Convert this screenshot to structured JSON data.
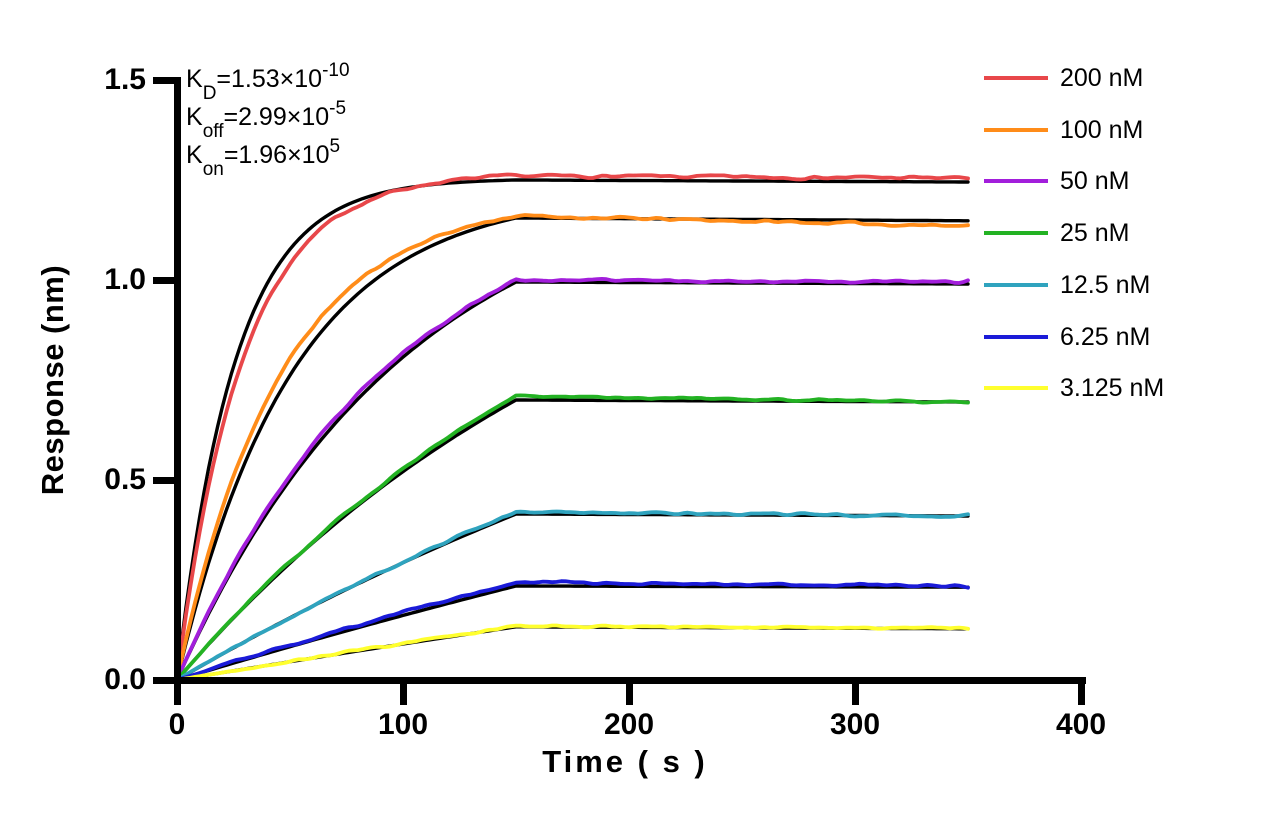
{
  "figure": {
    "background": "#FFFFFF"
  },
  "annotations": {
    "kd": {
      "base": "K",
      "sub": "D",
      "value": "=1.53×10",
      "exp": "-10"
    },
    "koff": {
      "base": "K",
      "sub": "off",
      "value": "=2.99×10",
      "exp": "-5"
    },
    "kon": {
      "base": "K",
      "sub": "on",
      "value": "=1.96×10",
      "exp": "5"
    }
  },
  "chart_data": {
    "type": "line",
    "title": "",
    "xlabel": "Time ( s )",
    "ylabel": "Response (nm)",
    "xlim": [
      0,
      400
    ],
    "ylim": [
      0,
      1.5
    ],
    "x_ticks": [
      "0",
      "100",
      "200",
      "300",
      "400"
    ],
    "y_ticks": [
      "0.0",
      "0.5",
      "1.0",
      "1.5"
    ],
    "grid": false,
    "legend_position": "top-right-outside",
    "axis_color": "#000000",
    "fit_color": "#000000",
    "association_end_s": 150,
    "trace_end_s": 350,
    "sample_times": [
      0,
      10,
      25,
      50,
      75,
      100,
      125,
      150,
      200,
      250,
      300,
      350
    ],
    "series": [
      {
        "name": "200 nM",
        "color": "#E8474A",
        "kobs": 0.0392,
        "k_data_scale": 0.88,
        "peak": 1.26,
        "end": 1.255,
        "fit_peak": 1.25,
        "fit_end": 1.245,
        "noise": 0.007,
        "seed": 7,
        "values": [
          0,
          0.37,
          0.73,
          1.04,
          1.17,
          1.23,
          1.25,
          1.26,
          1.26,
          1.26,
          1.26,
          1.255
        ]
      },
      {
        "name": "100 nM",
        "color": "#FF8C19",
        "kobs": 0.0196,
        "k_data_scale": 1.12,
        "peak": 1.16,
        "end": 1.135,
        "fit_peak": 1.155,
        "fit_end": 1.148,
        "noise": 0.007,
        "seed": 11,
        "values": [
          0,
          0.24,
          0.51,
          0.8,
          0.97,
          1.07,
          1.13,
          1.16,
          1.15,
          1.145,
          1.14,
          1.135
        ]
      },
      {
        "name": "50 nM",
        "color": "#A21EDB",
        "kobs": 0.0098,
        "k_data_scale": 1.05,
        "peak": 1.0,
        "end": 0.995,
        "fit_peak": 0.995,
        "fit_end": 0.99,
        "noise": 0.006,
        "seed": 23,
        "values": [
          0,
          0.12,
          0.29,
          0.51,
          0.68,
          0.82,
          0.92,
          1.0,
          1.0,
          1.0,
          0.995,
          0.995
        ]
      },
      {
        "name": "25 nM",
        "color": "#23B223",
        "kobs": 0.0049,
        "k_data_scale": 0.97,
        "peak": 0.71,
        "end": 0.695,
        "fit_peak": 0.7,
        "fit_end": 0.695,
        "noise": 0.005,
        "seed": 31,
        "values": [
          0,
          0.065,
          0.156,
          0.294,
          0.417,
          0.527,
          0.624,
          0.71,
          0.7,
          0.7,
          0.695,
          0.695
        ]
      },
      {
        "name": "12.5 nM",
        "color": "#2FA3BE",
        "kobs": 0.00245,
        "k_data_scale": 0.96,
        "peak": 0.42,
        "end": 0.41,
        "fit_peak": 0.415,
        "fit_end": 0.41,
        "noise": 0.006,
        "seed": 41,
        "values": [
          0,
          0.033,
          0.081,
          0.157,
          0.229,
          0.297,
          0.36,
          0.42,
          0.415,
          0.412,
          0.41,
          0.41
        ]
      },
      {
        "name": "6.25 nM",
        "color": "#1B1BD8",
        "kobs": 0.001225,
        "k_data_scale": 1.05,
        "peak": 0.245,
        "end": 0.235,
        "fit_peak": 0.235,
        "fit_end": 0.232,
        "noise": 0.006,
        "seed": 53,
        "values": [
          0,
          0.018,
          0.044,
          0.087,
          0.128,
          0.169,
          0.207,
          0.245,
          0.24,
          0.238,
          0.236,
          0.235
        ]
      },
      {
        "name": "3.125 nM",
        "color": "#FFFF2E",
        "kobs": 0.0006125,
        "k_data_scale": 1.0,
        "peak": 0.135,
        "end": 0.13,
        "fit_peak": 0.133,
        "fit_end": 0.128,
        "noise": 0.005,
        "seed": 67,
        "values": [
          0,
          0.009,
          0.023,
          0.046,
          0.069,
          0.091,
          0.113,
          0.135,
          0.133,
          0.132,
          0.131,
          0.13
        ]
      }
    ]
  }
}
